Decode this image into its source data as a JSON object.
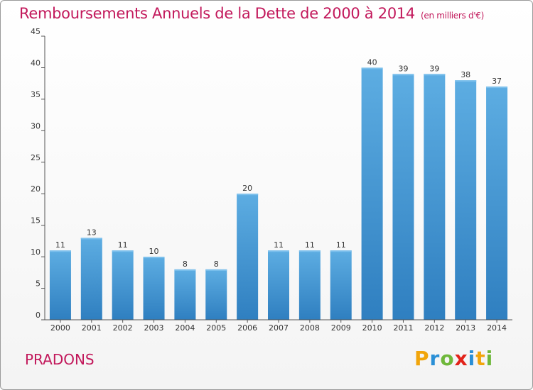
{
  "header": {
    "title": "Remboursements Annuels de la Dette de 2000 à 2014",
    "unit": "(en milliers d'€)"
  },
  "footer": {
    "commune": "PRADONS",
    "logo": {
      "p": "P",
      "r": "r",
      "o": "o",
      "x": "x",
      "i1": "i",
      "t": "t",
      "i2": "i"
    }
  },
  "colors": {
    "bar_light": "#5dade2",
    "bar_dark": "#2f7fc0",
    "title": "#c2185b"
  },
  "chart_data": {
    "type": "bar",
    "title": "Remboursements Annuels de la Dette de 2000 à 2014",
    "subtitle": "(en milliers d'€)",
    "xlabel": "",
    "ylabel": "",
    "categories": [
      "2000",
      "2001",
      "2002",
      "2003",
      "2004",
      "2005",
      "2006",
      "2007",
      "2008",
      "2009",
      "2010",
      "2011",
      "2012",
      "2013",
      "2014"
    ],
    "values": [
      11,
      13,
      11,
      10,
      8,
      8,
      20,
      11,
      11,
      11,
      40,
      39,
      39,
      38,
      37
    ],
    "ylim": [
      0,
      45
    ],
    "yticks": [
      0,
      5,
      10,
      15,
      20,
      25,
      30,
      35,
      40,
      45
    ],
    "grid": false,
    "data_labels": true
  }
}
